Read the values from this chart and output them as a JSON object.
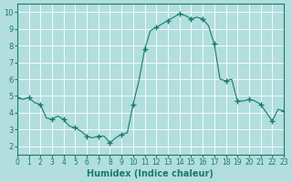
{
  "xlabel": "Humidex (Indice chaleur)",
  "ylabel": "",
  "bg_color": "#b2dede",
  "grid_color": "#ffffff",
  "line_color": "#1a7a6e",
  "marker_color": "#1a7a6e",
  "xlim": [
    0,
    23
  ],
  "ylim": [
    1.5,
    10.5
  ],
  "yticks": [
    2,
    3,
    4,
    5,
    6,
    7,
    8,
    9,
    10
  ],
  "xticks": [
    0,
    1,
    2,
    3,
    4,
    5,
    6,
    7,
    8,
    9,
    10,
    11,
    12,
    13,
    14,
    15,
    16,
    17,
    18,
    19,
    20,
    21,
    22,
    23
  ],
  "x": [
    0,
    0.5,
    1,
    1.5,
    2,
    2.5,
    3,
    3.5,
    4,
    4.5,
    5,
    5.5,
    6,
    6.5,
    7,
    7.5,
    8,
    8.5,
    9,
    9.5,
    10,
    10.5,
    11,
    11.5,
    12,
    12.5,
    13,
    13.5,
    14,
    14.5,
    15,
    15.5,
    16,
    16.5,
    17,
    17.5,
    18,
    18.5,
    19,
    19.5,
    20,
    20.5,
    21,
    21.5,
    22,
    22.5,
    23
  ],
  "y": [
    4.9,
    4.8,
    4.9,
    4.6,
    4.5,
    3.7,
    3.6,
    3.8,
    3.6,
    3.2,
    3.1,
    2.9,
    2.6,
    2.5,
    2.6,
    2.6,
    2.2,
    2.5,
    2.7,
    2.8,
    4.5,
    5.9,
    7.8,
    8.9,
    9.1,
    9.3,
    9.5,
    9.7,
    9.9,
    9.8,
    9.6,
    9.7,
    9.6,
    9.2,
    8.1,
    6.0,
    5.9,
    6.0,
    4.7,
    4.7,
    4.8,
    4.7,
    4.5,
    4.0,
    3.5,
    4.2,
    4.1
  ],
  "marker_x": [
    0,
    1,
    2,
    3,
    4,
    5,
    6,
    7,
    8,
    9,
    10,
    11,
    12,
    13,
    14,
    15,
    16,
    17,
    18,
    19,
    20,
    21,
    22,
    23
  ],
  "marker_y": [
    4.9,
    4.9,
    4.5,
    3.6,
    3.6,
    3.1,
    2.6,
    2.6,
    2.2,
    2.7,
    4.5,
    7.8,
    9.1,
    9.5,
    9.9,
    9.6,
    9.6,
    8.1,
    5.9,
    4.7,
    4.8,
    4.5,
    3.5,
    4.1
  ]
}
